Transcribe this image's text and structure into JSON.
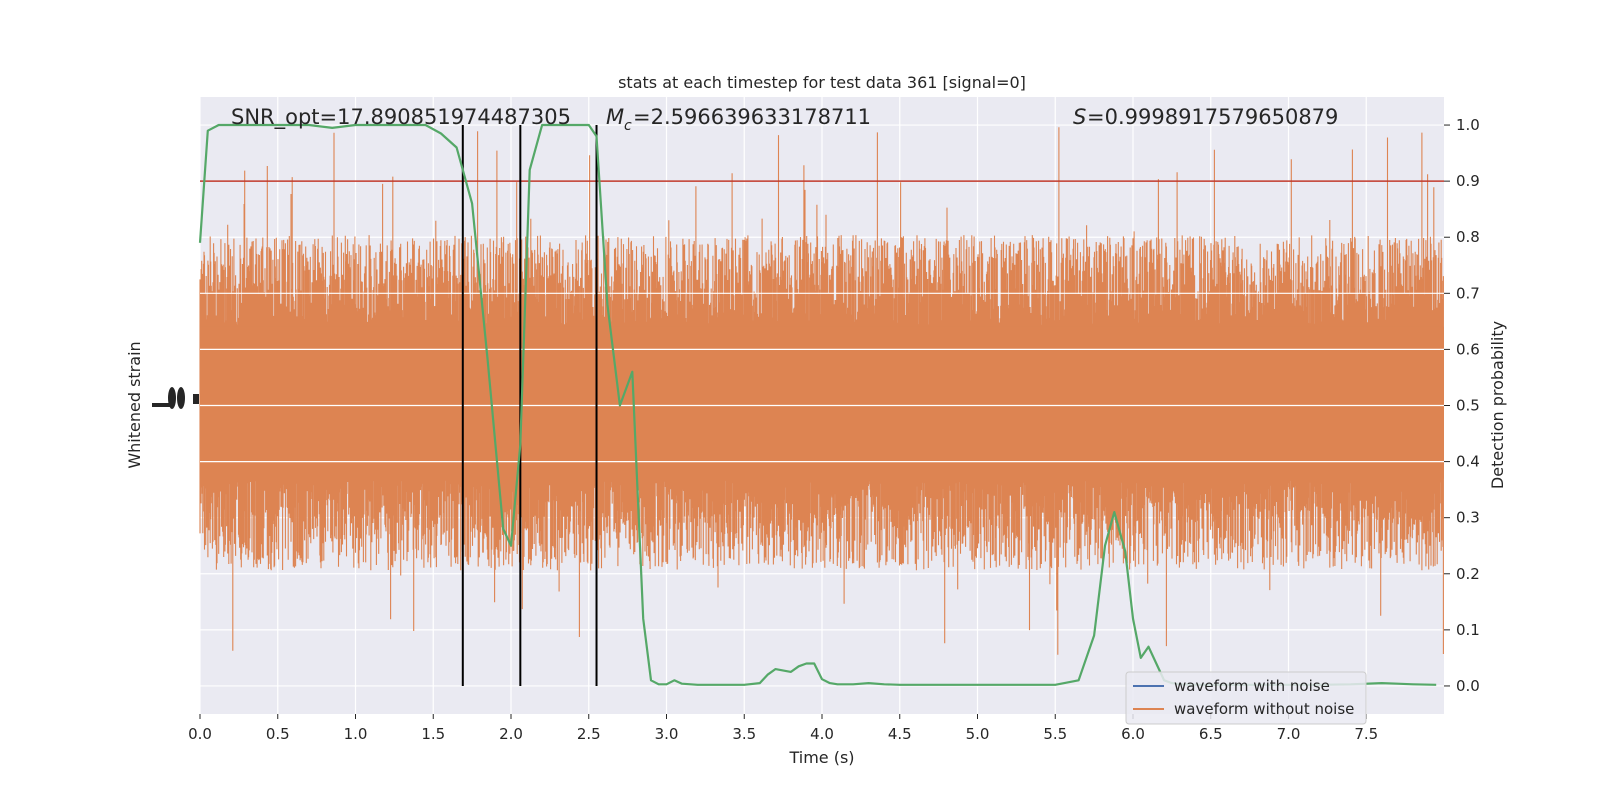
{
  "chart_data": {
    "type": "line",
    "title": "stats at each timestep for test data 361 [signal=0]",
    "xlabel": "Time (s)",
    "ylabel_left": "Whitened strain",
    "ylabel_right": "Detection probability",
    "xlim": [
      0,
      8.0
    ],
    "ylim_right": [
      -0.05,
      1.05
    ],
    "x_ticks": [
      "0.0",
      "0.5",
      "1.0",
      "1.5",
      "2.0",
      "2.5",
      "3.0",
      "3.5",
      "4.0",
      "4.5",
      "5.0",
      "5.5",
      "6.0",
      "6.5",
      "7.0",
      "7.5"
    ],
    "y_ticks_right": [
      "0.0",
      "0.1",
      "0.2",
      "0.3",
      "0.4",
      "0.5",
      "0.6",
      "0.7",
      "0.8",
      "0.9",
      "1.0"
    ],
    "grid": true,
    "legend_placement": "bottom-right",
    "annotations": {
      "snr": "SNR_opt=17.890851974487305",
      "mc": "=2.596639633178711",
      "s": "=0.9998917579650879"
    },
    "threshold": 0.9,
    "vertical_lines": [
      1.69,
      2.06,
      2.55
    ],
    "series": [
      {
        "name": "waveform with noise",
        "color": "#4c72b0"
      },
      {
        "name": "waveform without noise",
        "color": "#dd8452"
      },
      {
        "color": "#55a868",
        "x": [
          0.0,
          0.05,
          0.12,
          0.25,
          0.4,
          0.55,
          0.7,
          0.85,
          1.0,
          1.15,
          1.3,
          1.45,
          1.55,
          1.65,
          1.75,
          1.85,
          1.95,
          2.0,
          2.06,
          2.12,
          2.2,
          2.3,
          2.4,
          2.5,
          2.55,
          2.62,
          2.7,
          2.78,
          2.85,
          2.9,
          2.95,
          3.0,
          3.05,
          3.1,
          3.2,
          3.3,
          3.5,
          3.6,
          3.65,
          3.7,
          3.8,
          3.85,
          3.9,
          3.95,
          4.0,
          4.05,
          4.1,
          4.2,
          4.3,
          4.4,
          4.5,
          5.0,
          5.5,
          5.65,
          5.75,
          5.82,
          5.88,
          5.95,
          6.0,
          6.05,
          6.1,
          6.15,
          6.2,
          6.25,
          6.3,
          6.4,
          6.5,
          6.6,
          6.8,
          7.0,
          7.2,
          7.4,
          7.6,
          7.7,
          7.8,
          7.95
        ],
        "y": [
          0.79,
          0.99,
          1.0,
          1.0,
          1.0,
          1.0,
          1.0,
          0.995,
          1.0,
          1.0,
          1.0,
          1.0,
          0.985,
          0.96,
          0.86,
          0.58,
          0.28,
          0.25,
          0.43,
          0.92,
          1.0,
          1.0,
          1.0,
          1.0,
          0.98,
          0.68,
          0.5,
          0.56,
          0.12,
          0.01,
          0.003,
          0.003,
          0.01,
          0.004,
          0.002,
          0.002,
          0.002,
          0.005,
          0.02,
          0.03,
          0.025,
          0.035,
          0.04,
          0.04,
          0.012,
          0.005,
          0.003,
          0.003,
          0.005,
          0.003,
          0.002,
          0.002,
          0.002,
          0.01,
          0.09,
          0.25,
          0.31,
          0.24,
          0.12,
          0.05,
          0.07,
          0.04,
          0.01,
          0.005,
          0.003,
          0.002,
          0.002,
          0.002,
          0.002,
          0.002,
          0.002,
          0.003,
          0.005,
          0.004,
          0.003,
          0.002
        ]
      }
    ],
    "waveform_envelope_y": {
      "typical_low": 0.31,
      "typical_high": 0.7,
      "peak_max": 1.0,
      "trough_min": 0.02
    }
  }
}
